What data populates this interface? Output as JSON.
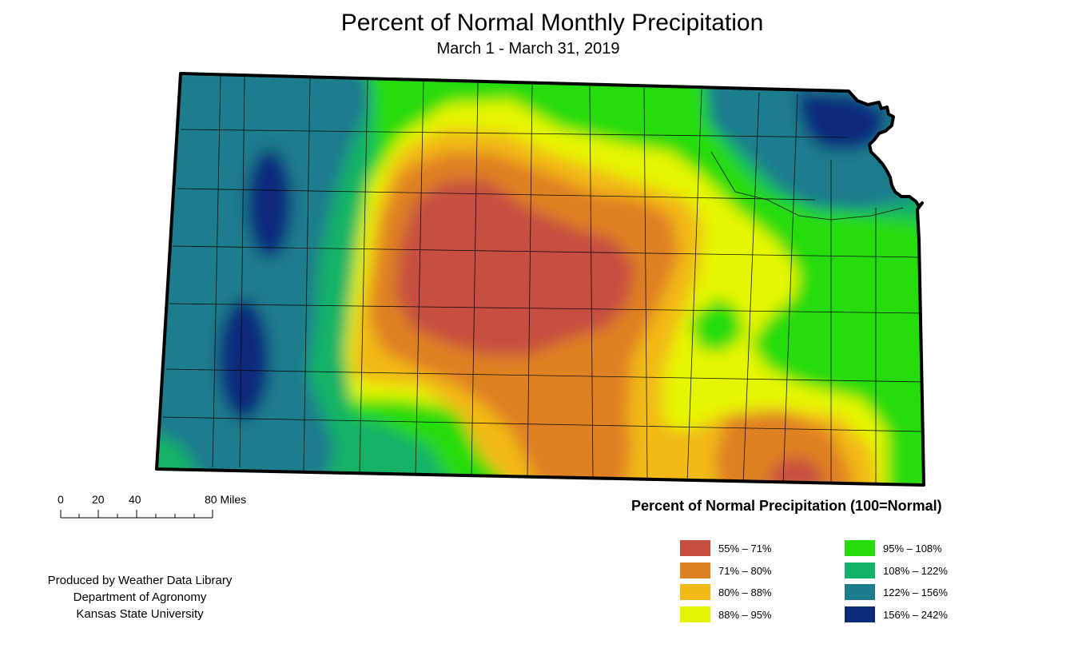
{
  "title": "Percent of Normal Monthly Precipitation",
  "subtitle": "March 1 - March 31, 2019",
  "scale": {
    "ticks": [
      "0",
      "20",
      "40",
      "80 Miles"
    ]
  },
  "credit": {
    "line1": "Produced by Weather Data Library",
    "line2": "Department of Agronomy",
    "line3": "Kansas State University"
  },
  "legend": {
    "title": "Percent of Normal Precipitation (100=Normal)",
    "items": [
      {
        "label": "55% – 71%",
        "color": "#c65040"
      },
      {
        "label": "71% – 80%",
        "color": "#df8022"
      },
      {
        "label": "80% – 88%",
        "color": "#f1ba16"
      },
      {
        "label": "88% – 95%",
        "color": "#e6f600"
      },
      {
        "label": "95% – 108%",
        "color": "#28dc0c"
      },
      {
        "label": "108% – 122%",
        "color": "#14b266"
      },
      {
        "label": "122% – 156%",
        "color": "#1b7d8c"
      },
      {
        "label": "156% – 242%",
        "color": "#0b2c7c"
      }
    ]
  }
}
